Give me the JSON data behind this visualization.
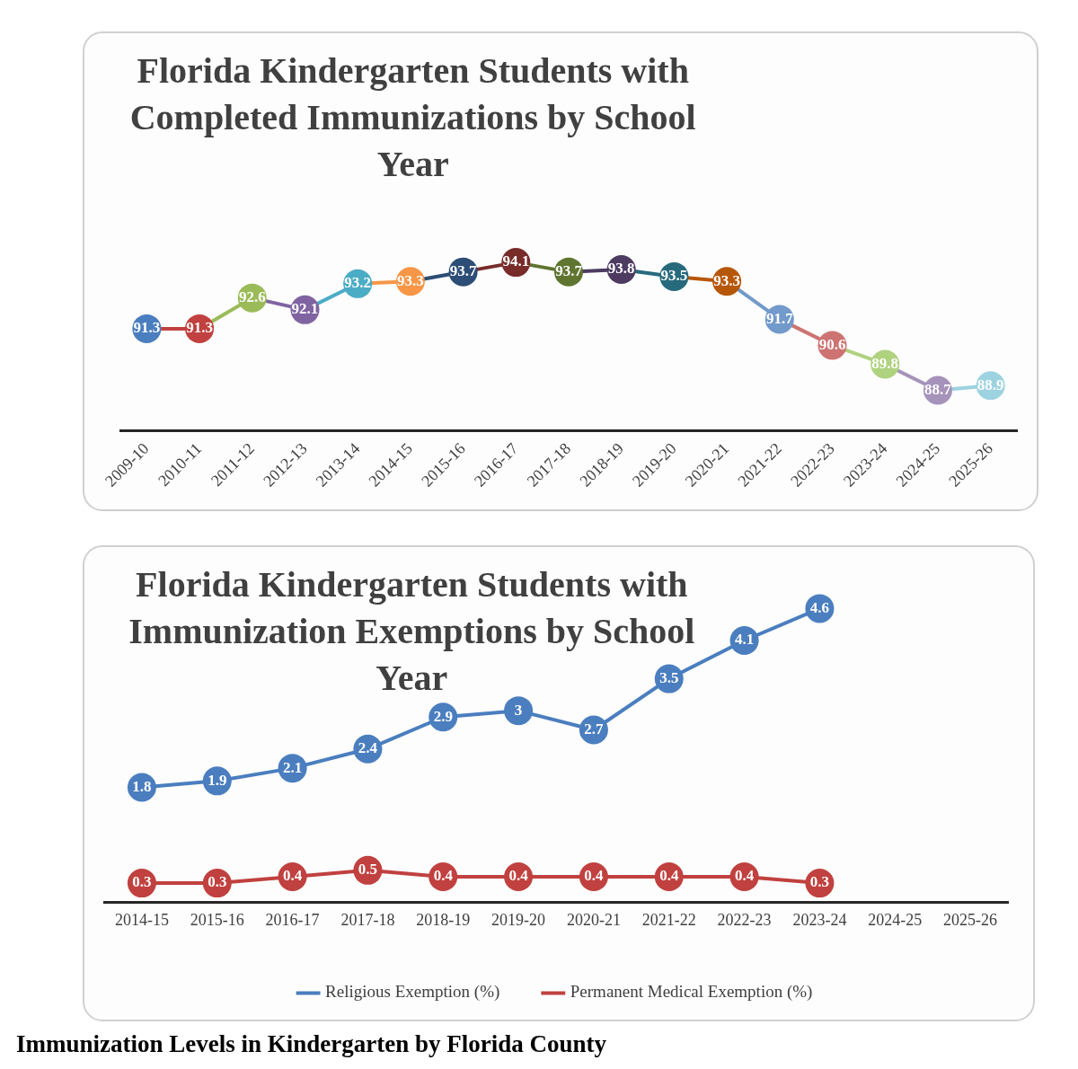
{
  "chart_data": [
    {
      "type": "line",
      "title": "Florida Kindergarten Students with Completed Immunizations by School Year",
      "categories": [
        "2009-10",
        "2010-11",
        "2011-12",
        "2012-13",
        "2013-14",
        "2014-15",
        "2015-16",
        "2016-17",
        "2017-18",
        "2018-19",
        "2019-20",
        "2020-21",
        "2021-22",
        "2022-23",
        "2023-24",
        "2024-25",
        "2025-26"
      ],
      "values": [
        91.3,
        91.3,
        92.6,
        92.1,
        93.2,
        93.3,
        93.7,
        94.1,
        93.7,
        93.8,
        93.5,
        93.3,
        91.7,
        90.6,
        89.8,
        88.7,
        88.9
      ],
      "colors": [
        "#4a7ebf",
        "#c0413f",
        "#9bbb59",
        "#8064a2",
        "#4bacc6",
        "#f79646",
        "#2c4d75",
        "#772c2a",
        "#5f7530",
        "#4d3b62",
        "#276a7c",
        "#b65708",
        "#729aca",
        "#cd7371",
        "#afd27f",
        "#a593bb",
        "#9dd2e0"
      ],
      "marker": "circle",
      "data_labels": true,
      "grid": false,
      "legend": false
    },
    {
      "type": "line",
      "title": "Florida Kindergarten Students with Immunization Exemptions by School Year",
      "categories": [
        "2014-15",
        "2015-16",
        "2016-17",
        "2017-18",
        "2018-19",
        "2019-20",
        "2020-21",
        "2021-22",
        "2022-23",
        "2023-24",
        "2024-25",
        "2025-26"
      ],
      "series": [
        {
          "name": "Religious Exemption (%)",
          "color": "#4a7ebf",
          "values": [
            1.8,
            1.9,
            2.1,
            2.4,
            2.9,
            3,
            2.7,
            3.5,
            4.1,
            4.6,
            null,
            null
          ]
        },
        {
          "name": "Permanent Medical Exemption (%)",
          "color": "#c0413f",
          "values": [
            0.3,
            0.3,
            0.4,
            0.5,
            0.4,
            0.4,
            0.4,
            0.4,
            0.4,
            0.3,
            null,
            null
          ]
        }
      ],
      "marker": "circle",
      "data_labels": true,
      "grid": false,
      "legend": "bottom",
      "annotations": [
        "Immunization Levels in Kindergarten by Florida County"
      ]
    }
  ]
}
